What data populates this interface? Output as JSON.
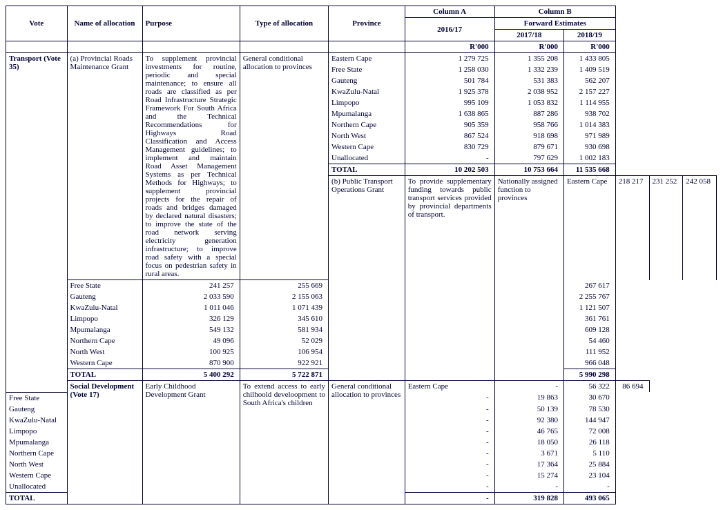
{
  "headers": {
    "vote": "Vote",
    "name": "Name of allocation",
    "purpose": "Purpose",
    "type": "Type of allocation",
    "province": "Province",
    "colA": "Column A",
    "colB": "Column B",
    "y1": "2016/17",
    "fwd": "Forward Estimates",
    "y2": "2017/18",
    "y3": "2018/19",
    "unit": "R'000"
  },
  "sections": [
    {
      "vote": "Transport (Vote 35)",
      "allocations": [
        {
          "name": "(a) Provincial Roads Maintenance Grant",
          "purpose": "To supplement provincial investments for routine, periodic and special maintenance; to ensure all roads are classified as per Road Infrastructure Strategic Framework For South Africa and the Technical Recommendations for Highways Road Classification and Access Management guidelines; to implement and maintain Road Asset Management Systems as per Technical Methods for Highways; to supplement provincial projects for the repair of roads and bridges damaged by declared natural disasters; to improve the state of the road network serving electricity generation infrastructure; to improve road safety with a special focus on pedestrian safety in rural areas.",
          "type": "General conditional allocation to provinces",
          "rows": [
            {
              "p": "Eastern Cape",
              "a": "1 279 725",
              "b": "1 355 208",
              "c": "1 433 805"
            },
            {
              "p": "Free State",
              "a": "1 258 030",
              "b": "1 332 239",
              "c": "1 409 519"
            },
            {
              "p": "Gauteng",
              "a": "501 784",
              "b": "531 383",
              "c": "562 207"
            },
            {
              "p": "KwaZulu-Natal",
              "a": "1 925 378",
              "b": "2 038 952",
              "c": "2 157 227"
            },
            {
              "p": "Limpopo",
              "a": "995 109",
              "b": "1 053 832",
              "c": "1 114 955"
            },
            {
              "p": "Mpumalanga",
              "a": "1 638 865",
              "b": "887 286",
              "c": "938 702"
            },
            {
              "p": "Northern Cape",
              "a": "905 359",
              "b": "958 766",
              "c": "1 014 383"
            },
            {
              "p": "North West",
              "a": "867 524",
              "b": "918 698",
              "c": "971 989"
            },
            {
              "p": "Western Cape",
              "a": "830 729",
              "b": "879 671",
              "c": "930 698"
            },
            {
              "p": "Unallocated",
              "a": "-",
              "b": "797 629",
              "c": "1 002 183"
            }
          ],
          "total": {
            "p": "TOTAL",
            "a": "10 202 503",
            "b": "10 753 664",
            "c": "11 535 668"
          },
          "spacer": true
        },
        {
          "name": "(b) Public Transport Operations Grant",
          "purpose": "To provide supplementary funding towards public transport services provided by provincial departments of transport.",
          "type": "Nationally assigned function to provinces",
          "rows": [
            {
              "p": "Eastern Cape",
              "a": "218 217",
              "b": "231 252",
              "c": "242 058"
            },
            {
              "p": "Free State",
              "a": "241 257",
              "b": "255 669",
              "c": "267 617"
            },
            {
              "p": "Gauteng",
              "a": "2 033 590",
              "b": "2 155 063",
              "c": "2 255 767"
            },
            {
              "p": "KwaZulu-Natal",
              "a": "1 011 046",
              "b": "1 071 439",
              "c": "1 121 507"
            },
            {
              "p": "Limpopo",
              "a": "326 129",
              "b": "345 610",
              "c": "361 761"
            },
            {
              "p": "Mpumalanga",
              "a": "549 132",
              "b": "581 934",
              "c": "609 128"
            },
            {
              "p": "Northern Cape",
              "a": "49 096",
              "b": "52 029",
              "c": "54 460"
            },
            {
              "p": "North West",
              "a": "100 925",
              "b": "106 954",
              "c": "111 952"
            },
            {
              "p": "Western Cape",
              "a": "870 900",
              "b": "922 921",
              "c": "966 048"
            }
          ],
          "total": {
            "p": "TOTAL",
            "a": "5 400 292",
            "b": "5 722 871",
            "c": "5 990 298"
          },
          "spacer": false
        }
      ]
    },
    {
      "vote": "Social Development (Vote 17)",
      "allocations": [
        {
          "name": "Early Childhood Development Grant",
          "purpose": "To extend access to early chilhoold develoopment to South Africa's children",
          "type": "General conditional allocation to provinces",
          "rows": [
            {
              "p": "Eastern Cape",
              "a": "-",
              "b": "56 322",
              "c": "86 694"
            },
            {
              "p": "Free State",
              "a": "-",
              "b": "19 863",
              "c": "30 670"
            },
            {
              "p": "Gauteng",
              "a": "-",
              "b": "50 139",
              "c": "78 530"
            },
            {
              "p": "KwaZulu-Natal",
              "a": "-",
              "b": "92 380",
              "c": "144 947"
            },
            {
              "p": "Limpopo",
              "a": "-",
              "b": "46 765",
              "c": "72 008"
            },
            {
              "p": "Mpumalanga",
              "a": "-",
              "b": "18 050",
              "c": "26 118"
            },
            {
              "p": "Northern Cape",
              "a": "-",
              "b": "3 671",
              "c": "5 110"
            },
            {
              "p": "North West",
              "a": "-",
              "b": "17 364",
              "c": "25 884"
            },
            {
              "p": "Western Cape",
              "a": "-",
              "b": "15 274",
              "c": "23 104"
            },
            {
              "p": "Unallocated",
              "a": "-",
              "b": "-",
              "c": "-"
            }
          ],
          "total": {
            "p": "TOTAL",
            "a": "-",
            "b": "319 828",
            "c": "493 065"
          },
          "spacer": false
        }
      ]
    }
  ]
}
